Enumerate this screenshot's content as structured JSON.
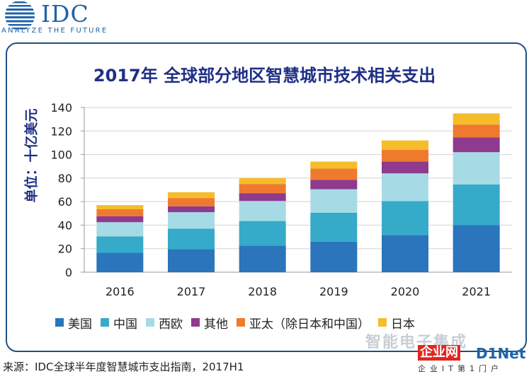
{
  "brand": {
    "name": "IDC",
    "tagline": "ANALYZE THE FUTURE"
  },
  "chart_data": {
    "type": "bar",
    "stacked": true,
    "title": "2017年 全球部分地区智慧城市技术相关支出",
    "ylabel": "单位：十亿美元",
    "xlabel": "",
    "categories": [
      "2016",
      "2017",
      "2018",
      "2019",
      "2020",
      "2021"
    ],
    "ylim": [
      0,
      140
    ],
    "yticks": [
      0,
      20,
      40,
      60,
      80,
      100,
      120,
      140
    ],
    "grid": true,
    "legend_position": "bottom",
    "series": [
      {
        "name": "美国",
        "color": "#2a75bb",
        "values": [
          16.5,
          19.5,
          22.5,
          26,
          31.5,
          40
        ]
      },
      {
        "name": "中国",
        "color": "#36aac9",
        "values": [
          14,
          17.5,
          21,
          24.5,
          29,
          34.5
        ]
      },
      {
        "name": "西欧",
        "color": "#a6dbe6",
        "values": [
          12,
          14,
          17,
          20,
          23.5,
          27.5
        ]
      },
      {
        "name": "其他",
        "color": "#8e3a8e",
        "values": [
          5,
          5,
          6.5,
          8,
          10,
          12.5
        ]
      },
      {
        "name": "亚太（除日本和中国）",
        "color": "#ef7a2e",
        "values": [
          6,
          7,
          8,
          9.5,
          10,
          11
        ]
      },
      {
        "name": "日本",
        "color": "#f5bc2b",
        "values": [
          3.5,
          5,
          5,
          6,
          8,
          9.5
        ]
      }
    ]
  },
  "source": "来源：IDC全球半年度智慧城市支出指南，2017H1",
  "watermark": {
    "top": "智能电子集成",
    "badge": "企业网",
    "brand": "D1Net",
    "sub": "企业IT第1门户"
  }
}
